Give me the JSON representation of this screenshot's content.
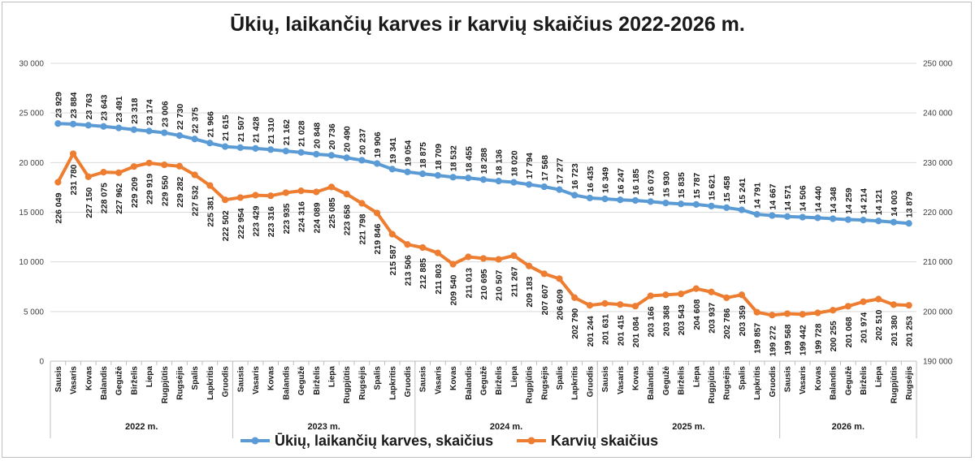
{
  "chart_data": {
    "type": "line",
    "title": "Ūkių, laikančių karves ir karvių skaičius 2022-2026 m.",
    "years": [
      "2022 m.",
      "2023 m.",
      "2024 m.",
      "2025 m.",
      "2026 m."
    ],
    "months": [
      "Sausis",
      "Vasaris",
      "Kovas",
      "Balandis",
      "Gegužė",
      "Birželis",
      "Liepa",
      "Rugpjūtis",
      "Rugsėjis",
      "Spalis",
      "Lapkritis",
      "Gruodis"
    ],
    "series": [
      {
        "name": "Ūkių, laikančių karves, skaičius",
        "axis": "left",
        "color": "#5b9bd5",
        "values": [
          23929,
          23884,
          23763,
          23643,
          23491,
          23318,
          23174,
          23006,
          22730,
          22375,
          21966,
          21615,
          21507,
          21428,
          21310,
          21162,
          21028,
          20848,
          20736,
          20490,
          20237,
          19906,
          19341,
          19054,
          18875,
          18709,
          18532,
          18455,
          18288,
          18136,
          18020,
          17794,
          17568,
          17277,
          16723,
          16435,
          16349,
          16247,
          16185,
          16073,
          15930,
          15835,
          15787,
          15621,
          15458,
          15241,
          14791,
          14667,
          14571,
          14506,
          14440,
          14348,
          14259,
          14214,
          14121,
          14003,
          13879
        ],
        "labels": [
          "23 929",
          "23 884",
          "23 763",
          "23 643",
          "23 491",
          "23 318",
          "23 174",
          "23 006",
          "22 730",
          "22 375",
          "21 966",
          "21 615",
          "21 507",
          "21 428",
          "21 310",
          "21 162",
          "21 028",
          "20 848",
          "20 736",
          "20 490",
          "20 237",
          "19 906",
          "19 341",
          "19 054",
          "18 875",
          "18 709",
          "18 532",
          "18 455",
          "18 288",
          "18 136",
          "18 020",
          "17 794",
          "17 568",
          "17 277",
          "16 723",
          "16 435",
          "16 349",
          "16 247",
          "16 185",
          "16 073",
          "15 930",
          "15 835",
          "15 787",
          "15 621",
          "15 458",
          "15 241",
          "14 791",
          "14 667",
          "14 571",
          "14 506",
          "14 440",
          "14 348",
          "14 259",
          "14 214",
          "14 121",
          "14 003",
          "13 879"
        ]
      },
      {
        "name": "Karvių skaičius",
        "axis": "right",
        "color": "#ed7d31",
        "values": [
          226049,
          231780,
          227150,
          228075,
          227962,
          229209,
          229919,
          229550,
          229282,
          227532,
          225381,
          222502,
          222954,
          223429,
          223316,
          223935,
          224316,
          224089,
          225085,
          223658,
          221798,
          219846,
          215587,
          213506,
          212885,
          211803,
          209540,
          211013,
          210695,
          210507,
          211267,
          209183,
          207607,
          206609,
          202790,
          201244,
          201631,
          201415,
          201084,
          203166,
          203368,
          203543,
          204608,
          203937,
          202786,
          203359,
          199857,
          199272,
          199568,
          199442,
          199728,
          200255,
          201068,
          201974,
          202510,
          201380,
          201253
        ],
        "labels": [
          "226 049",
          "231 780",
          "227 150",
          "228 075",
          "227 962",
          "229 209",
          "229 919",
          "229 550",
          "229 282",
          "227 532",
          "225 381",
          "222 502",
          "222 954",
          "223 429",
          "223 316",
          "223 935",
          "224 316",
          "224 089",
          "225 085",
          "223 658",
          "221 798",
          "219 846",
          "215 587",
          "213 506",
          "212 885",
          "211 803",
          "209 540",
          "211 013",
          "210 695",
          "210 507",
          "211 267",
          "209 183",
          "207 607",
          "206 609",
          "202 790",
          "201 244",
          "201 631",
          "201 415",
          "201 084",
          "203 166",
          "203 368",
          "203 543",
          "204 608",
          "203 937",
          "202 786",
          "203 359",
          "199 857",
          "199 272",
          "199 568",
          "199 442",
          "199 728",
          "200 255",
          "201 068",
          "201 974",
          "202 510",
          "201 380",
          "201 253"
        ]
      }
    ],
    "y_left": {
      "min": 0,
      "max": 30000,
      "step": 5000,
      "ticks": [
        "0",
        "5 000",
        "10 000",
        "15 000",
        "20 000",
        "25 000",
        "30 000"
      ]
    },
    "y_right": {
      "min": 190000,
      "max": 250000,
      "step": 10000,
      "ticks": [
        "190 000",
        "200 000",
        "210 000",
        "220 000",
        "230 000",
        "240 000",
        "250 000"
      ]
    },
    "grid": "horizontal",
    "legend_position": "bottom"
  }
}
